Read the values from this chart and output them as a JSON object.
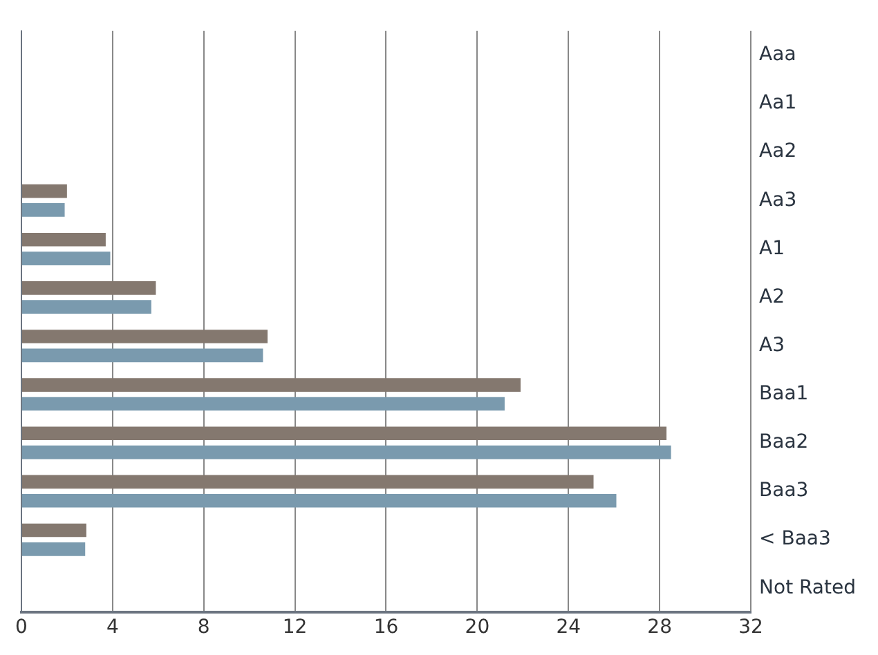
{
  "chart_data": {
    "type": "bar",
    "orientation": "horizontal",
    "categories": [
      "Aaa",
      "Aa1",
      "Aa2",
      "Aa3",
      "A1",
      "A2",
      "A3",
      "Baa1",
      "Baa2",
      "Baa3",
      "< Baa3",
      "Not Rated"
    ],
    "series": [
      {
        "color": "#84786f",
        "values": [
          0,
          0,
          0,
          2.0,
          3.7,
          5.9,
          10.8,
          21.9,
          28.3,
          25.1,
          2.85,
          0
        ]
      },
      {
        "color": "#7a9aae",
        "values": [
          0,
          0,
          0,
          1.9,
          3.9,
          5.7,
          10.6,
          21.2,
          28.5,
          26.1,
          2.8,
          0
        ]
      }
    ],
    "xlim": [
      0,
      32
    ],
    "xticks": [
      0,
      4,
      8,
      12,
      16,
      20,
      24,
      28,
      32
    ],
    "grid": "x",
    "legend": false
  }
}
